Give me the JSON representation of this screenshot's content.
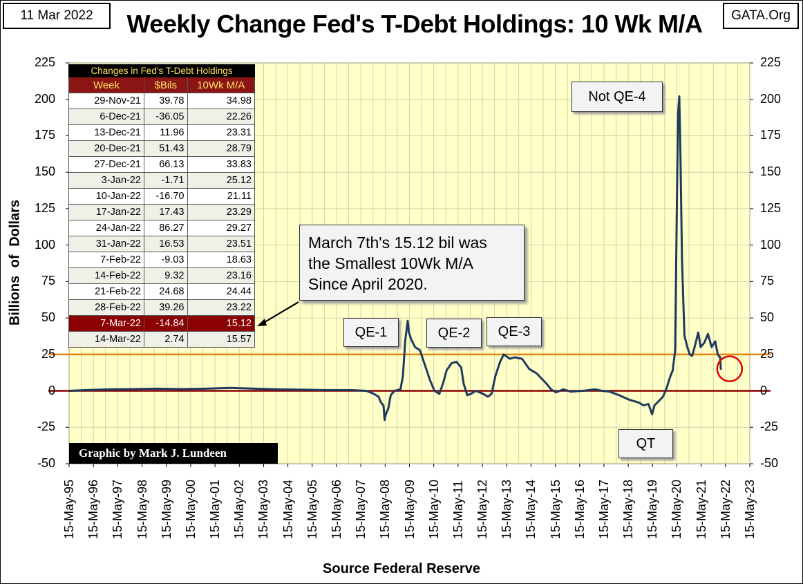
{
  "header": {
    "date": "11 Mar 2022",
    "site": "GATA.Org",
    "title": "Weekly Change Fed's T-Debt Holdings: 10 Wk M/A"
  },
  "credit": "Graphic by Mark J. Lundeen",
  "annotation": {
    "text_lines": [
      "March 7th's 15.12 bil was",
      "the Smallest 10Wk M/A",
      "Since April 2020."
    ]
  },
  "chart_data": {
    "type": "line",
    "title": "Weekly Change Fed's T-Debt Holdings: 10 Wk M/A",
    "xlabel": "Source Federal Reserve",
    "ylabel": "Billions   of   Dollars",
    "ylim": [
      -50,
      225
    ],
    "yticks": [
      -50,
      -25,
      0,
      25,
      50,
      75,
      100,
      125,
      150,
      175,
      200,
      225
    ],
    "xticks": [
      "15-May-95",
      "15-May-96",
      "15-May-97",
      "15-May-98",
      "15-May-99",
      "15-May-00",
      "15-May-01",
      "15-May-02",
      "15-May-03",
      "15-May-04",
      "15-May-05",
      "15-May-06",
      "15-May-07",
      "15-May-08",
      "15-May-09",
      "15-May-10",
      "15-May-11",
      "15-May-12",
      "15-May-13",
      "15-May-14",
      "15-May-15",
      "15-May-16",
      "15-May-17",
      "15-May-18",
      "15-May-19",
      "15-May-20",
      "15-May-21",
      "15-May-22",
      "15-May-23"
    ],
    "xlim_years": [
      1995.37,
      2023.37
    ],
    "grid": true,
    "reference_lines": [
      {
        "value": 25,
        "color": "#e8820c",
        "name": "25 bil line"
      },
      {
        "value": 0,
        "color": "#8b0000",
        "name": "zero line"
      }
    ],
    "series": [
      {
        "name": "10 Wk M/A",
        "color": "#1f3a5f",
        "points": [
          [
            1995.37,
            0
          ],
          [
            1996.0,
            0.5
          ],
          [
            1997.0,
            1
          ],
          [
            1998.0,
            1.2
          ],
          [
            1999.0,
            1.5
          ],
          [
            2000.0,
            1.2
          ],
          [
            2001.0,
            1.5
          ],
          [
            2002.0,
            2
          ],
          [
            2003.0,
            1.5
          ],
          [
            2004.0,
            1
          ],
          [
            2005.0,
            0.8
          ],
          [
            2006.0,
            0.5
          ],
          [
            2007.0,
            0.5
          ],
          [
            2007.6,
            0
          ],
          [
            2007.9,
            -2
          ],
          [
            2008.1,
            -4
          ],
          [
            2008.2,
            -8
          ],
          [
            2008.3,
            -10
          ],
          [
            2008.35,
            -20
          ],
          [
            2008.4,
            -16
          ],
          [
            2008.5,
            -12
          ],
          [
            2008.6,
            -3
          ],
          [
            2008.75,
            0
          ],
          [
            2009.0,
            1
          ],
          [
            2009.1,
            10
          ],
          [
            2009.2,
            35
          ],
          [
            2009.3,
            48
          ],
          [
            2009.35,
            40
          ],
          [
            2009.45,
            35
          ],
          [
            2009.6,
            30
          ],
          [
            2009.8,
            28
          ],
          [
            2010.0,
            18
          ],
          [
            2010.2,
            8
          ],
          [
            2010.4,
            0
          ],
          [
            2010.6,
            -2
          ],
          [
            2010.75,
            5
          ],
          [
            2010.9,
            14
          ],
          [
            2011.1,
            19
          ],
          [
            2011.3,
            20
          ],
          [
            2011.5,
            16
          ],
          [
            2011.6,
            5
          ],
          [
            2011.75,
            -3
          ],
          [
            2011.9,
            -2
          ],
          [
            2012.1,
            0
          ],
          [
            2012.4,
            -2
          ],
          [
            2012.6,
            -4
          ],
          [
            2012.75,
            -2
          ],
          [
            2012.9,
            10
          ],
          [
            2013.1,
            20
          ],
          [
            2013.25,
            25
          ],
          [
            2013.5,
            22
          ],
          [
            2013.7,
            23
          ],
          [
            2014.0,
            22
          ],
          [
            2014.3,
            15
          ],
          [
            2014.6,
            12
          ],
          [
            2015.0,
            5
          ],
          [
            2015.2,
            1
          ],
          [
            2015.4,
            -1
          ],
          [
            2015.7,
            1
          ],
          [
            2016.0,
            -0.5
          ],
          [
            2016.5,
            0
          ],
          [
            2017.0,
            1
          ],
          [
            2017.3,
            0
          ],
          [
            2017.6,
            -0.5
          ],
          [
            2018.0,
            -3
          ],
          [
            2018.4,
            -6
          ],
          [
            2018.8,
            -8
          ],
          [
            2019.0,
            -10
          ],
          [
            2019.2,
            -9
          ],
          [
            2019.35,
            -16
          ],
          [
            2019.45,
            -10
          ],
          [
            2019.8,
            -4
          ],
          [
            2019.95,
            2
          ],
          [
            2020.1,
            10
          ],
          [
            2020.2,
            14
          ],
          [
            2020.3,
            28
          ],
          [
            2020.38,
            140
          ],
          [
            2020.42,
            190
          ],
          [
            2020.47,
            202
          ],
          [
            2020.52,
            160
          ],
          [
            2020.58,
            90
          ],
          [
            2020.68,
            38
          ],
          [
            2020.8,
            30
          ],
          [
            2020.9,
            25
          ],
          [
            2021.0,
            24
          ],
          [
            2021.1,
            30
          ],
          [
            2021.25,
            40
          ],
          [
            2021.35,
            30
          ],
          [
            2021.5,
            33
          ],
          [
            2021.65,
            39
          ],
          [
            2021.8,
            30
          ],
          [
            2021.95,
            34
          ],
          [
            2022.05,
            25
          ],
          [
            2022.12,
            23.5
          ],
          [
            2022.15,
            23.2
          ],
          [
            2022.18,
            15.1
          ],
          [
            2022.2,
            15.6
          ]
        ]
      }
    ],
    "labels": [
      "QE-1",
      "QE-2",
      "QE-3",
      "Not QE-4",
      "QT"
    ],
    "table": {
      "caption": "Changes in Fed's T-Debt Holdings",
      "columns": [
        "Week",
        "$Bils",
        "10Wk M/A"
      ],
      "rows": [
        [
          "29-Nov-21",
          "39.78",
          "34.98"
        ],
        [
          "6-Dec-21",
          "-36.05",
          "22.26"
        ],
        [
          "13-Dec-21",
          "11.96",
          "23.31"
        ],
        [
          "20-Dec-21",
          "51.43",
          "28.79"
        ],
        [
          "27-Dec-21",
          "66.13",
          "33.83"
        ],
        [
          "3-Jan-22",
          "-1.71",
          "25.12"
        ],
        [
          "10-Jan-22",
          "-16.70",
          "21.11"
        ],
        [
          "17-Jan-22",
          "17.43",
          "23.29"
        ],
        [
          "24-Jan-22",
          "86.27",
          "29.27"
        ],
        [
          "31-Jan-22",
          "16.53",
          "23.51"
        ],
        [
          "7-Feb-22",
          "-9.03",
          "18.63"
        ],
        [
          "14-Feb-22",
          "9.32",
          "23.16"
        ],
        [
          "21-Feb-22",
          "24.68",
          "24.44"
        ],
        [
          "28-Feb-22",
          "39.26",
          "23.22"
        ],
        [
          "7-Mar-22",
          "-14.84",
          "15.12"
        ],
        [
          "14-Mar-22",
          "2.74",
          "15.57"
        ]
      ],
      "highlight_row": 14
    }
  }
}
